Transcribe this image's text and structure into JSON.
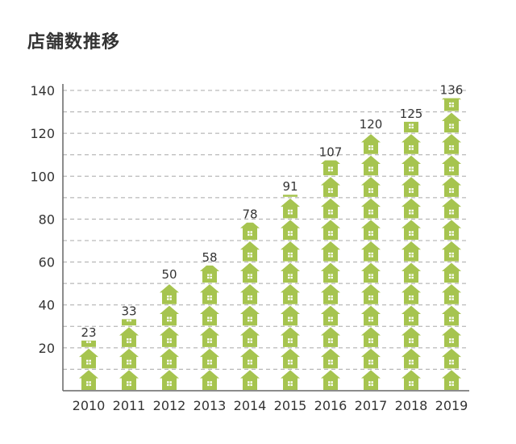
{
  "colors": {
    "house": "#a6c44f",
    "window": "#ffffff",
    "grid": "#a8a8a8",
    "axis": "#666666",
    "text": "#333333"
  },
  "icons": {
    "unit": "house-icon"
  },
  "chart_data": {
    "type": "bar",
    "title": "店舗数推移",
    "xlabel": "",
    "ylabel": "",
    "ylim": [
      0,
      140
    ],
    "yticks": [
      20,
      40,
      60,
      80,
      100,
      120,
      140
    ],
    "grid": true,
    "unit_per_icon": 10,
    "categories": [
      "2010",
      "2011",
      "2012",
      "2013",
      "2014",
      "2015",
      "2016",
      "2017",
      "2018",
      "2019"
    ],
    "values": [
      23,
      33,
      50,
      58,
      78,
      91,
      107,
      120,
      125,
      136
    ],
    "data_labels": [
      "23",
      "33",
      "50",
      "58",
      "78",
      "91",
      "107",
      "120",
      "125",
      "136"
    ]
  }
}
